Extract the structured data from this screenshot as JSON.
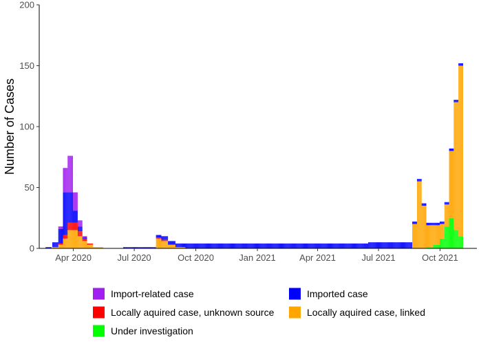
{
  "chart_data": {
    "type": "bar",
    "stacked": true,
    "title": "",
    "xlabel": "",
    "ylabel": "Number of Cases",
    "ylim": [
      0,
      200
    ],
    "yticks": [
      0,
      50,
      100,
      150,
      200
    ],
    "xlim": [
      "2020-02-10",
      "2021-11-25"
    ],
    "xticks": [
      {
        "date": "2020-04-01",
        "label": "Apr 2020"
      },
      {
        "date": "2020-07-01",
        "label": "Jul 2020"
      },
      {
        "date": "2020-10-01",
        "label": "Oct 2020"
      },
      {
        "date": "2021-01-01",
        "label": "Jan 2021"
      },
      {
        "date": "2021-04-01",
        "label": "Apr 2021"
      },
      {
        "date": "2021-07-01",
        "label": "Jul 2021"
      },
      {
        "date": "2021-10-01",
        "label": "Oct 2021"
      }
    ],
    "grid": false,
    "legend_position": "bottom",
    "legend": [
      {
        "key": "import_related",
        "label": "Import-related case",
        "color": "#a020f0"
      },
      {
        "key": "imported",
        "label": "Imported case",
        "color": "#0000ff"
      },
      {
        "key": "local_unknown",
        "label": "Locally aquired case, unknown source",
        "color": "#ff0000"
      },
      {
        "key": "local_linked",
        "label": "Locally aquired case, linked",
        "color": "#ffa500"
      },
      {
        "key": "investigation",
        "label": "Under investigation",
        "color": "#00ff00"
      }
    ],
    "stack_order": [
      "investigation",
      "local_linked",
      "local_unknown",
      "imported",
      "import_related"
    ],
    "bar_width_days": 1,
    "periods": [
      {
        "start": "2020-02-20",
        "end": "2020-02-28",
        "investigation": 0,
        "local_linked": 0,
        "local_unknown": 0,
        "imported": 1,
        "import_related": 0
      },
      {
        "start": "2020-03-01",
        "end": "2020-03-09",
        "investigation": 0,
        "local_linked": 1,
        "local_unknown": 0,
        "imported": 4,
        "import_related": 0
      },
      {
        "start": "2020-03-10",
        "end": "2020-03-16",
        "investigation": 0,
        "local_linked": 3,
        "local_unknown": 1,
        "imported": 12,
        "import_related": 2
      },
      {
        "start": "2020-03-17",
        "end": "2020-03-23",
        "investigation": 0,
        "local_linked": 8,
        "local_unknown": 3,
        "imported": 35,
        "import_related": 20
      },
      {
        "start": "2020-03-24",
        "end": "2020-03-31",
        "investigation": 0,
        "local_linked": 15,
        "local_unknown": 6,
        "imported": 25,
        "import_related": 30
      },
      {
        "start": "2020-04-01",
        "end": "2020-04-07",
        "investigation": 0,
        "local_linked": 15,
        "local_unknown": 6,
        "imported": 10,
        "import_related": 15
      },
      {
        "start": "2020-04-08",
        "end": "2020-04-14",
        "investigation": 0,
        "local_linked": 10,
        "local_unknown": 4,
        "imported": 4,
        "import_related": 5
      },
      {
        "start": "2020-04-15",
        "end": "2020-04-21",
        "investigation": 0,
        "local_linked": 6,
        "local_unknown": 2,
        "imported": 1,
        "import_related": 1
      },
      {
        "start": "2020-04-22",
        "end": "2020-04-30",
        "investigation": 0,
        "local_linked": 3,
        "local_unknown": 1,
        "imported": 0,
        "import_related": 0
      },
      {
        "start": "2020-05-01",
        "end": "2020-05-15",
        "investigation": 0,
        "local_linked": 1,
        "local_unknown": 0,
        "imported": 0,
        "import_related": 0
      },
      {
        "start": "2020-06-15",
        "end": "2020-08-02",
        "investigation": 0,
        "local_linked": 0,
        "local_unknown": 0,
        "imported": 1,
        "import_related": 0
      },
      {
        "start": "2020-08-03",
        "end": "2020-08-10",
        "investigation": 0,
        "local_linked": 8,
        "local_unknown": 1,
        "imported": 2,
        "import_related": 0
      },
      {
        "start": "2020-08-11",
        "end": "2020-08-20",
        "investigation": 0,
        "local_linked": 6,
        "local_unknown": 1,
        "imported": 3,
        "import_related": 0
      },
      {
        "start": "2020-08-21",
        "end": "2020-08-31",
        "investigation": 0,
        "local_linked": 3,
        "local_unknown": 0,
        "imported": 3,
        "import_related": 0
      },
      {
        "start": "2020-09-01",
        "end": "2020-09-15",
        "investigation": 0,
        "local_linked": 1,
        "local_unknown": 0,
        "imported": 3,
        "import_related": 0
      },
      {
        "start": "2020-09-16",
        "end": "2020-12-31",
        "investigation": 0,
        "local_linked": 0,
        "local_unknown": 0,
        "imported": 4,
        "import_related": 0
      },
      {
        "start": "2021-01-01",
        "end": "2021-06-15",
        "investigation": 0,
        "local_linked": 0,
        "local_unknown": 0,
        "imported": 4,
        "import_related": 0
      },
      {
        "start": "2021-06-16",
        "end": "2021-08-20",
        "investigation": 0,
        "local_linked": 0,
        "local_unknown": 0,
        "imported": 5,
        "import_related": 0
      },
      {
        "start": "2021-08-21",
        "end": "2021-08-27",
        "investigation": 0,
        "local_linked": 20,
        "local_unknown": 0,
        "imported": 2,
        "import_related": 0
      },
      {
        "start": "2021-08-28",
        "end": "2021-09-03",
        "investigation": 0,
        "local_linked": 55,
        "local_unknown": 0,
        "imported": 2,
        "import_related": 0
      },
      {
        "start": "2021-09-04",
        "end": "2021-09-10",
        "investigation": 0,
        "local_linked": 35,
        "local_unknown": 0,
        "imported": 2,
        "import_related": 0
      },
      {
        "start": "2021-09-11",
        "end": "2021-09-20",
        "investigation": 1,
        "local_linked": 18,
        "local_unknown": 0,
        "imported": 2,
        "import_related": 0
      },
      {
        "start": "2021-09-21",
        "end": "2021-09-30",
        "investigation": 3,
        "local_linked": 16,
        "local_unknown": 0,
        "imported": 2,
        "import_related": 0
      },
      {
        "start": "2021-10-01",
        "end": "2021-10-07",
        "investigation": 8,
        "local_linked": 12,
        "local_unknown": 0,
        "imported": 2,
        "import_related": 0
      },
      {
        "start": "2021-10-08",
        "end": "2021-10-14",
        "investigation": 18,
        "local_linked": 18,
        "local_unknown": 0,
        "imported": 2,
        "import_related": 0
      },
      {
        "start": "2021-10-15",
        "end": "2021-10-21",
        "investigation": 25,
        "local_linked": 55,
        "local_unknown": 0,
        "imported": 2,
        "import_related": 0
      },
      {
        "start": "2021-10-22",
        "end": "2021-10-28",
        "investigation": 15,
        "local_linked": 105,
        "local_unknown": 0,
        "imported": 2,
        "import_related": 0
      },
      {
        "start": "2021-10-29",
        "end": "2021-11-04",
        "investigation": 10,
        "local_linked": 140,
        "local_unknown": 0,
        "imported": 2,
        "import_related": 0
      }
    ]
  }
}
